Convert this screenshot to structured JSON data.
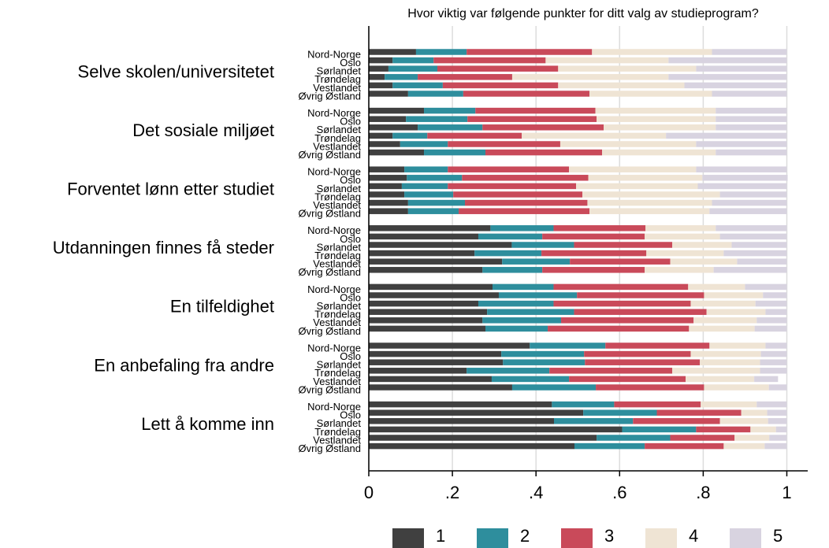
{
  "chart_data": {
    "type": "stacked-bar-horizontal",
    "title": "Hvor viktig var følgende punkter for ditt valg av studieprogram?",
    "groups": [
      "Selve skolen/universitetet",
      "Det sosiale miljøet",
      "Forventet lønn etter studiet",
      "Utdanningen finnes få steder",
      "En tilfeldighet",
      "En anbefaling fra andre",
      "Lett å komme inn"
    ],
    "categories": [
      "Nord-Norge",
      "Oslo",
      "Sørlandet",
      "Trøndelag",
      "Vestlandet",
      "Øvrig Østland"
    ],
    "xlim": [
      0,
      1.05
    ],
    "xticks": [
      0,
      {
        "value": 0.2,
        "label": ".2"
      },
      {
        "value": 0.4,
        "label": ".4"
      },
      {
        "value": 0.6,
        "label": ".6"
      },
      {
        "value": 0.8,
        "label": ".8"
      },
      1
    ],
    "grid": true,
    "legend": "bottom",
    "series": [
      {
        "name": "1",
        "color": "#404040",
        "values": [
          [
            0.113,
            0.057,
            0.047,
            0.038,
            0.057,
            0.094
          ],
          [
            0.132,
            0.089,
            0.117,
            0.057,
            0.075,
            0.132
          ],
          [
            0.085,
            0.091,
            0.079,
            0.085,
            0.094,
            0.094
          ],
          [
            0.291,
            0.262,
            0.342,
            0.253,
            0.319,
            0.272
          ],
          [
            0.296,
            0.311,
            0.262,
            0.283,
            0.272,
            0.279
          ],
          [
            0.385,
            0.317,
            0.321,
            0.234,
            0.294,
            0.343
          ],
          [
            0.438,
            0.513,
            0.443,
            0.606,
            0.545,
            0.492
          ]
        ]
      },
      {
        "name": "2",
        "color": "#2e8e9d",
        "values": [
          [
            0.121,
            0.098,
            0.117,
            0.079,
            0.12,
            0.132
          ],
          [
            0.123,
            0.147,
            0.155,
            0.083,
            0.114,
            0.147
          ],
          [
            0.104,
            0.132,
            0.11,
            0.117,
            0.136,
            0.121
          ],
          [
            0.151,
            0.153,
            0.149,
            0.16,
            0.162,
            0.143
          ],
          [
            0.146,
            0.187,
            0.18,
            0.208,
            0.188,
            0.149
          ],
          [
            0.181,
            0.198,
            0.196,
            0.198,
            0.185,
            0.2
          ],
          [
            0.149,
            0.176,
            0.189,
            0.177,
            0.176,
            0.168
          ]
        ]
      },
      {
        "name": "3",
        "color": "#c94a5a",
        "values": [
          [
            0.3,
            0.268,
            0.289,
            0.226,
            0.276,
            0.302
          ],
          [
            0.287,
            0.309,
            0.29,
            0.226,
            0.269,
            0.279
          ],
          [
            0.29,
            0.302,
            0.307,
            0.309,
            0.293,
            0.313
          ],
          [
            0.22,
            0.245,
            0.235,
            0.251,
            0.24,
            0.245
          ],
          [
            0.322,
            0.304,
            0.328,
            0.317,
            0.317,
            0.338
          ],
          [
            0.249,
            0.255,
            0.275,
            0.294,
            0.279,
            0.259
          ],
          [
            0.207,
            0.202,
            0.208,
            0.13,
            0.154,
            0.189
          ]
        ]
      },
      {
        "name": "4",
        "color": "#efe4d4",
        "values": [
          [
            0.287,
            0.294,
            0.33,
            0.374,
            0.302,
            0.293
          ],
          [
            0.288,
            0.285,
            0.268,
            0.345,
            0.325,
            0.272
          ],
          [
            0.304,
            0.273,
            0.291,
            0.329,
            0.298,
            0.287
          ],
          [
            0.168,
            0.18,
            0.142,
            0.185,
            0.16,
            0.165
          ],
          [
            0.136,
            0.141,
            0.155,
            0.141,
            0.151,
            0.157
          ],
          [
            0.134,
            0.168,
            0.144,
            0.21,
            0.164,
            0.155
          ],
          [
            0.134,
            0.062,
            0.115,
            0.061,
            0.083,
            0.098
          ]
        ]
      },
      {
        "name": "5",
        "color": "#d8d3e0",
        "values": [
          [
            0.179,
            0.283,
            0.217,
            0.283,
            0.245,
            0.179
          ],
          [
            0.17,
            0.17,
            0.17,
            0.289,
            0.217,
            0.17
          ],
          [
            0.217,
            0.204,
            0.213,
            0.16,
            0.179,
            0.185
          ],
          [
            0.17,
            0.16,
            0.132,
            0.151,
            0.119,
            0.175
          ],
          [
            0.1,
            0.057,
            0.075,
            0.051,
            0.072,
            0.077
          ],
          [
            0.051,
            0.062,
            0.064,
            0.064,
            0.057,
            0.043
          ],
          [
            0.072,
            0.047,
            0.045,
            0.026,
            0.042,
            0.053
          ]
        ]
      }
    ]
  }
}
